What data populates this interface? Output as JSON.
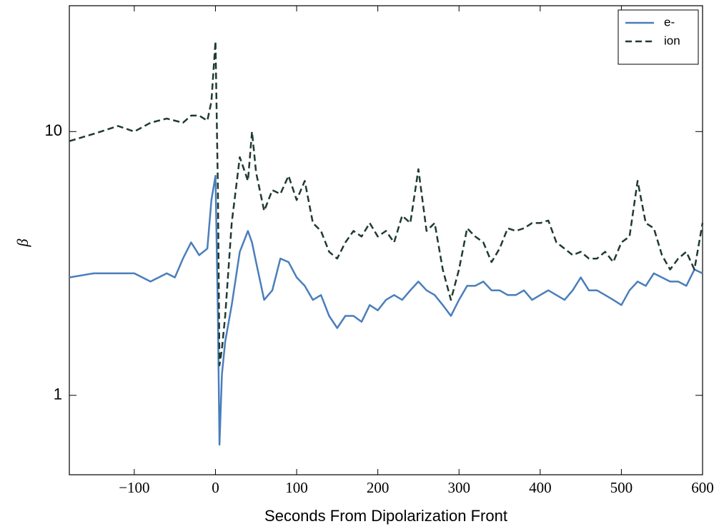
{
  "chart_data": {
    "type": "line",
    "xlabel": "Seconds From Dipolarization Front",
    "ylabel": "β",
    "x": [
      -180,
      -150,
      -120,
      -100,
      -80,
      -60,
      -50,
      -40,
      -30,
      -20,
      -10,
      -5,
      0,
      3,
      5,
      8,
      12,
      20,
      30,
      40,
      45,
      50,
      60,
      70,
      80,
      90,
      100,
      110,
      120,
      130,
      140,
      150,
      160,
      170,
      180,
      190,
      200,
      210,
      220,
      230,
      240,
      250,
      260,
      270,
      280,
      290,
      300,
      310,
      320,
      330,
      340,
      350,
      360,
      370,
      380,
      390,
      400,
      410,
      420,
      430,
      440,
      450,
      460,
      470,
      480,
      490,
      500,
      510,
      520,
      530,
      540,
      550,
      560,
      570,
      580,
      590,
      600
    ],
    "series": [
      {
        "name": "e-",
        "color": "#4a7ebb",
        "linestyle": "solid",
        "values": [
          2.8,
          2.9,
          2.9,
          2.9,
          2.7,
          2.9,
          2.8,
          3.3,
          3.8,
          3.4,
          3.6,
          5.5,
          6.8,
          2,
          0.65,
          1.2,
          1.6,
          2.2,
          3.5,
          4.2,
          3.8,
          3.2,
          2.3,
          2.5,
          3.3,
          3.2,
          2.8,
          2.6,
          2.3,
          2.4,
          2.0,
          1.8,
          2.0,
          2.0,
          1.9,
          2.2,
          2.1,
          2.3,
          2.4,
          2.3,
          2.5,
          2.7,
          2.5,
          2.4,
          2.2,
          2.0,
          2.3,
          2.6,
          2.6,
          2.7,
          2.5,
          2.5,
          2.4,
          2.4,
          2.5,
          2.3,
          2.4,
          2.5,
          2.4,
          2.3,
          2.5,
          2.8,
          2.5,
          2.5,
          2.4,
          2.3,
          2.2,
          2.5,
          2.7,
          2.6,
          2.9,
          2.8,
          2.7,
          2.7,
          2.6,
          3.0,
          2.9
        ]
      },
      {
        "name": "ion",
        "color": "#1f3b2f",
        "linestyle": "dashed",
        "values": [
          9.2,
          9.8,
          10.5,
          10,
          10.8,
          11.2,
          11,
          10.8,
          11.5,
          11.5,
          11,
          13,
          22,
          6,
          1.3,
          1.5,
          2,
          4.5,
          8,
          6.5,
          10,
          7,
          5,
          6,
          5.8,
          6.8,
          5.5,
          6.5,
          4.5,
          4.2,
          3.5,
          3.3,
          3.8,
          4.2,
          4.0,
          4.5,
          4.0,
          4.2,
          3.8,
          4.8,
          4.5,
          7.2,
          4.2,
          4.5,
          3.0,
          2.3,
          3.0,
          4.3,
          4.0,
          3.8,
          3.2,
          3.6,
          4.3,
          4.2,
          4.3,
          4.5,
          4.5,
          4.6,
          3.8,
          3.6,
          3.4,
          3.5,
          3.3,
          3.3,
          3.5,
          3.2,
          3.8,
          4.0,
          6.5,
          4.5,
          4.3,
          3.4,
          3.0,
          3.3,
          3.5,
          3.0,
          4.5
        ]
      }
    ],
    "xlim": [
      -180,
      600
    ],
    "xticks": [
      {
        "value": -100,
        "label": "−100"
      },
      0,
      100,
      200,
      300,
      400,
      500,
      600
    ],
    "ylim": [
      0.5,
      30
    ],
    "yticks": [
      1,
      10
    ],
    "yscale": "log",
    "grid": false,
    "legend": "upper right"
  }
}
